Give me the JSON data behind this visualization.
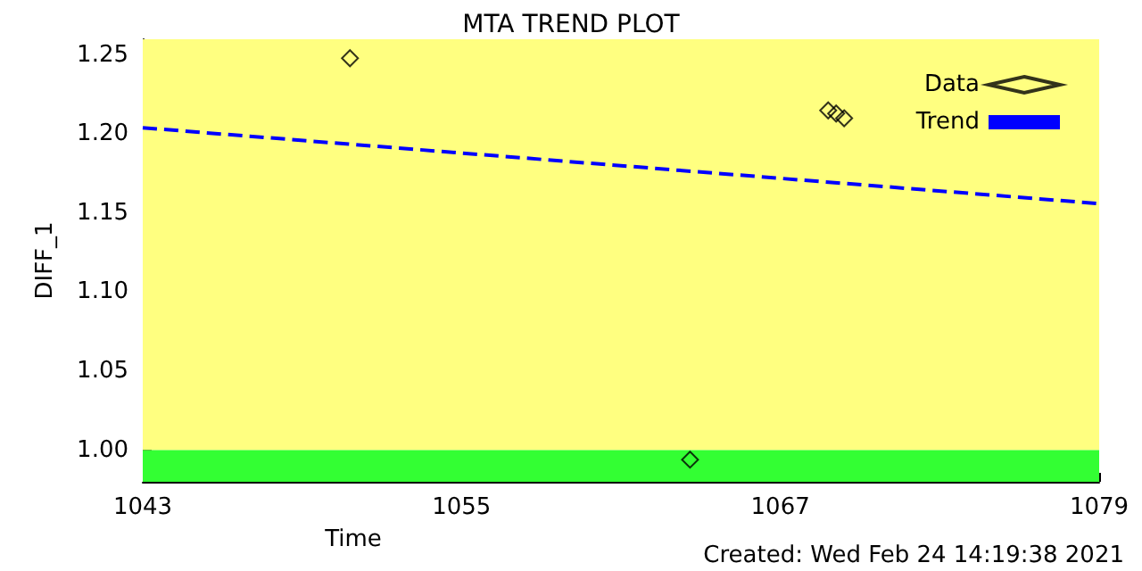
{
  "chart_data": {
    "type": "scatter",
    "title": "MTA TREND PLOT",
    "xlabel": "Time",
    "ylabel": "DIFF_1",
    "annotations": [
      "Created: Wed Feb 24 14:19:38 2021"
    ],
    "series": [
      {
        "name": "Data",
        "color": "#000000",
        "marker": "diamond",
        "x": [
          1050.8,
          1063.6,
          1068.8,
          1069.1,
          1069.4
        ],
        "values": [
          1.248,
          0.994,
          1.215,
          1.213,
          1.21
        ]
      },
      {
        "name": "Trend",
        "type": "line",
        "color": "#0000ff",
        "marker": "none",
        "line_style": "dashed",
        "x": [
          1043,
          1079
        ],
        "values": [
          1.204,
          1.156
        ]
      }
    ],
    "bands": [
      {
        "axis": "y",
        "from": 1.0,
        "to": 1.26,
        "color": "#ffff80"
      },
      {
        "axis": "y",
        "from": 0.98,
        "to": 1.0,
        "color": "#33ff33"
      }
    ],
    "xlim": [
      1043,
      1079
    ],
    "xticks": [
      1043,
      1055,
      1067,
      1079
    ],
    "ylim": [
      0.98,
      1.26
    ],
    "yticks": [
      {
        "value": 1.0,
        "label": "1.00"
      },
      {
        "value": 1.05,
        "label": "1.05"
      },
      {
        "value": 1.1,
        "label": "1.10"
      },
      {
        "value": 1.15,
        "label": "1.15"
      },
      {
        "value": 1.2,
        "label": "1.20"
      },
      {
        "value": 1.25,
        "label": "1.25"
      }
    ],
    "grid": false,
    "legend": "top right"
  }
}
